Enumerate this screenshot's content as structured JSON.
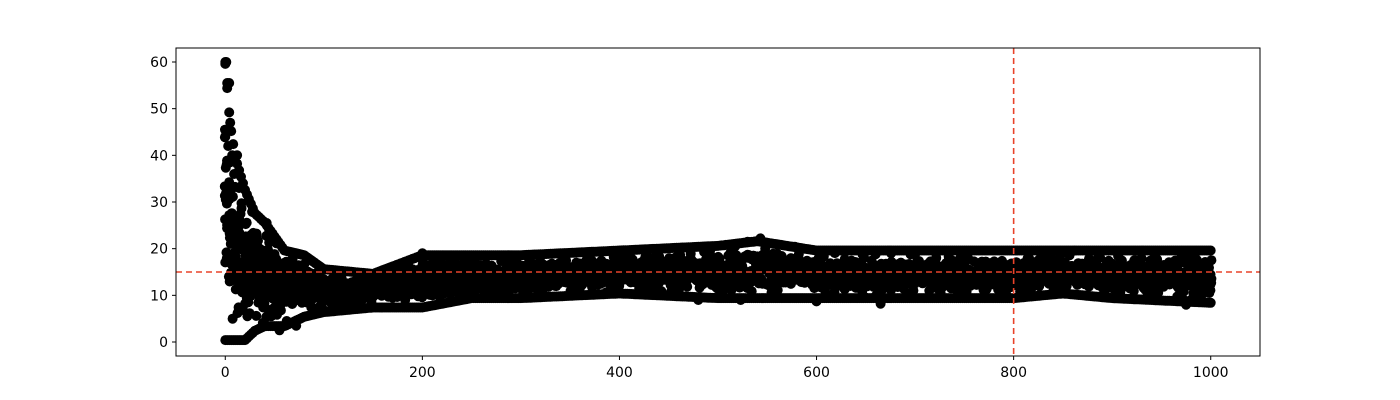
{
  "chart_data": {
    "type": "scatter",
    "title": "",
    "xlabel": "",
    "ylabel": "",
    "xlim": [
      -50,
      1050
    ],
    "ylim": [
      -3,
      63
    ],
    "x_ticks": [
      0,
      200,
      400,
      600,
      800,
      1000
    ],
    "y_ticks": [
      0,
      10,
      20,
      30,
      40,
      50,
      60
    ],
    "x_tick_labels": [
      "0",
      "200",
      "400",
      "600",
      "800",
      "1000"
    ],
    "y_tick_labels": [
      "0",
      "10",
      "20",
      "30",
      "40",
      "50",
      "60"
    ],
    "grid": false,
    "marker_color": "#000000",
    "reference_color": "#e8432a",
    "reference_lines": {
      "horizontal_y": 15,
      "vertical_x": 800
    },
    "series": [
      {
        "x_range": [
          0,
          1000
        ],
        "envelope": [
          {
            "x": 0,
            "low": 0,
            "high": 60
          },
          {
            "x": 5,
            "low": 0,
            "high": 47
          },
          {
            "x": 10,
            "low": 0,
            "high": 40
          },
          {
            "x": 20,
            "low": 0,
            "high": 33
          },
          {
            "x": 30,
            "low": 2,
            "high": 28
          },
          {
            "x": 40,
            "low": 3,
            "high": 26
          },
          {
            "x": 60,
            "low": 3,
            "high": 20
          },
          {
            "x": 80,
            "low": 5,
            "high": 19
          },
          {
            "x": 100,
            "low": 6,
            "high": 16
          },
          {
            "x": 150,
            "low": 7,
            "high": 15
          },
          {
            "x": 200,
            "low": 7,
            "high": 19
          },
          {
            "x": 250,
            "low": 9,
            "high": 19
          },
          {
            "x": 300,
            "low": 9,
            "high": 19
          },
          {
            "x": 400,
            "low": 10,
            "high": 20
          },
          {
            "x": 500,
            "low": 9,
            "high": 21
          },
          {
            "x": 540,
            "low": 9,
            "high": 22
          },
          {
            "x": 600,
            "low": 9,
            "high": 20
          },
          {
            "x": 700,
            "low": 9,
            "high": 20
          },
          {
            "x": 800,
            "low": 9,
            "high": 20
          },
          {
            "x": 850,
            "low": 10,
            "high": 20
          },
          {
            "x": 900,
            "low": 9,
            "high": 20
          },
          {
            "x": 1000,
            "low": 8,
            "high": 20
          }
        ],
        "outliers": [
          {
            "x": 0,
            "y": 60
          },
          {
            "x": 1,
            "y": 60
          },
          {
            "x": 2,
            "y": 55.5
          },
          {
            "x": 4,
            "y": 55.5
          },
          {
            "x": 5,
            "y": 47
          },
          {
            "x": 0,
            "y": 44
          },
          {
            "x": 3,
            "y": 42
          },
          {
            "x": 7,
            "y": 40
          },
          {
            "x": 12,
            "y": 40
          },
          {
            "x": 9,
            "y": 36
          },
          {
            "x": 14,
            "y": 33
          },
          {
            "x": 42,
            "y": 25.5
          },
          {
            "x": 55,
            "y": 2.5
          },
          {
            "x": 72,
            "y": 3.5
          },
          {
            "x": 200,
            "y": 19
          },
          {
            "x": 480,
            "y": 9
          },
          {
            "x": 523,
            "y": 9
          },
          {
            "x": 543,
            "y": 22.2
          },
          {
            "x": 530,
            "y": 21.5
          },
          {
            "x": 600,
            "y": 8.7
          },
          {
            "x": 665,
            "y": 8.2
          },
          {
            "x": 975,
            "y": 8
          }
        ]
      }
    ]
  }
}
